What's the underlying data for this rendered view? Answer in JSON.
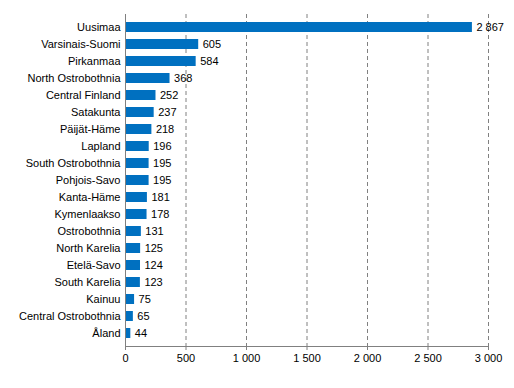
{
  "chart_data": {
    "type": "bar",
    "orientation": "horizontal",
    "categories": [
      "Uusimaa",
      "Varsinais-Suomi",
      "Pirkanmaa",
      "North Ostrobothnia",
      "Central Finland",
      "Satakunta",
      "Päijät-Häme",
      "Lapland",
      "South Ostrobothnia",
      "Pohjois-Savo",
      "Kanta-Häme",
      "Kymenlaakso",
      "Ostrobothnia",
      "North Karelia",
      "Etelä-Savo",
      "South Karelia",
      "Kainuu",
      "Central Ostrobothnia",
      "Åland"
    ],
    "values": [
      2867,
      605,
      584,
      368,
      252,
      237,
      218,
      196,
      195,
      195,
      181,
      178,
      131,
      125,
      124,
      123,
      75,
      65,
      44
    ],
    "value_labels": [
      "2 867",
      "605",
      "584",
      "368",
      "252",
      "237",
      "218",
      "196",
      "195",
      "195",
      "181",
      "178",
      "131",
      "125",
      "124",
      "123",
      "75",
      "65",
      "44"
    ],
    "color": "#0070c0",
    "xlim": [
      0,
      3000
    ],
    "xticks": [
      0,
      500,
      {
        "value": 1000,
        "label": "1 000"
      },
      {
        "value": 1500,
        "label": "1 500"
      },
      {
        "value": 2000,
        "label": "2 000"
      },
      {
        "value": 2500,
        "label": "2 500"
      },
      {
        "value": 3000,
        "label": "3 000"
      }
    ],
    "grid": true,
    "data_labels": true
  }
}
